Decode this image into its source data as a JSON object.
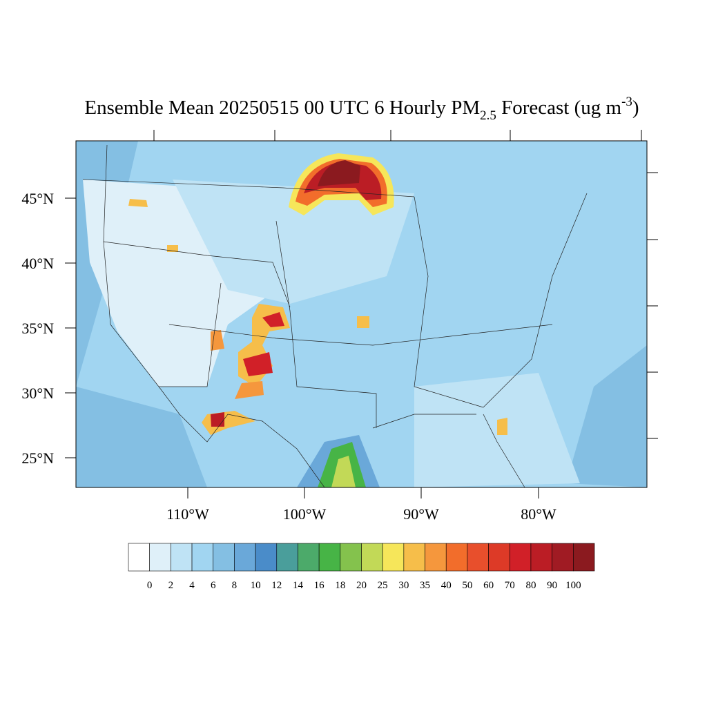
{
  "title": {
    "main": "Ensemble Mean 20250515 00 UTC 6 Hourly PM",
    "subscript": "2.5",
    "middle": " Forecast (ug m",
    "superscript": "-3",
    "end": ")"
  },
  "latitude_labels": [
    "45°N",
    "40°N",
    "35°N",
    "30°N",
    "25°N"
  ],
  "longitude_labels": [
    "110°W",
    "100°W",
    "90°W",
    "80°W"
  ],
  "colorbar": {
    "levels": [
      0,
      2,
      4,
      6,
      8,
      10,
      12,
      14,
      16,
      18,
      20,
      25,
      30,
      35,
      40,
      50,
      60,
      70,
      80,
      90,
      100
    ],
    "colors": [
      "#ffffff",
      "#dff0f9",
      "#bfe3f5",
      "#a1d5f1",
      "#84bfe3",
      "#6aa8d9",
      "#4a8cc9",
      "#4a9e9b",
      "#4caa6a",
      "#47b446",
      "#84c24d",
      "#c2d957",
      "#f6e65a",
      "#f6be4a",
      "#f5973d",
      "#f26d2b",
      "#e84f2c",
      "#dd3a27",
      "#d12028",
      "#bb1d25",
      "#a01b23",
      "#8b1a1f"
    ]
  }
}
